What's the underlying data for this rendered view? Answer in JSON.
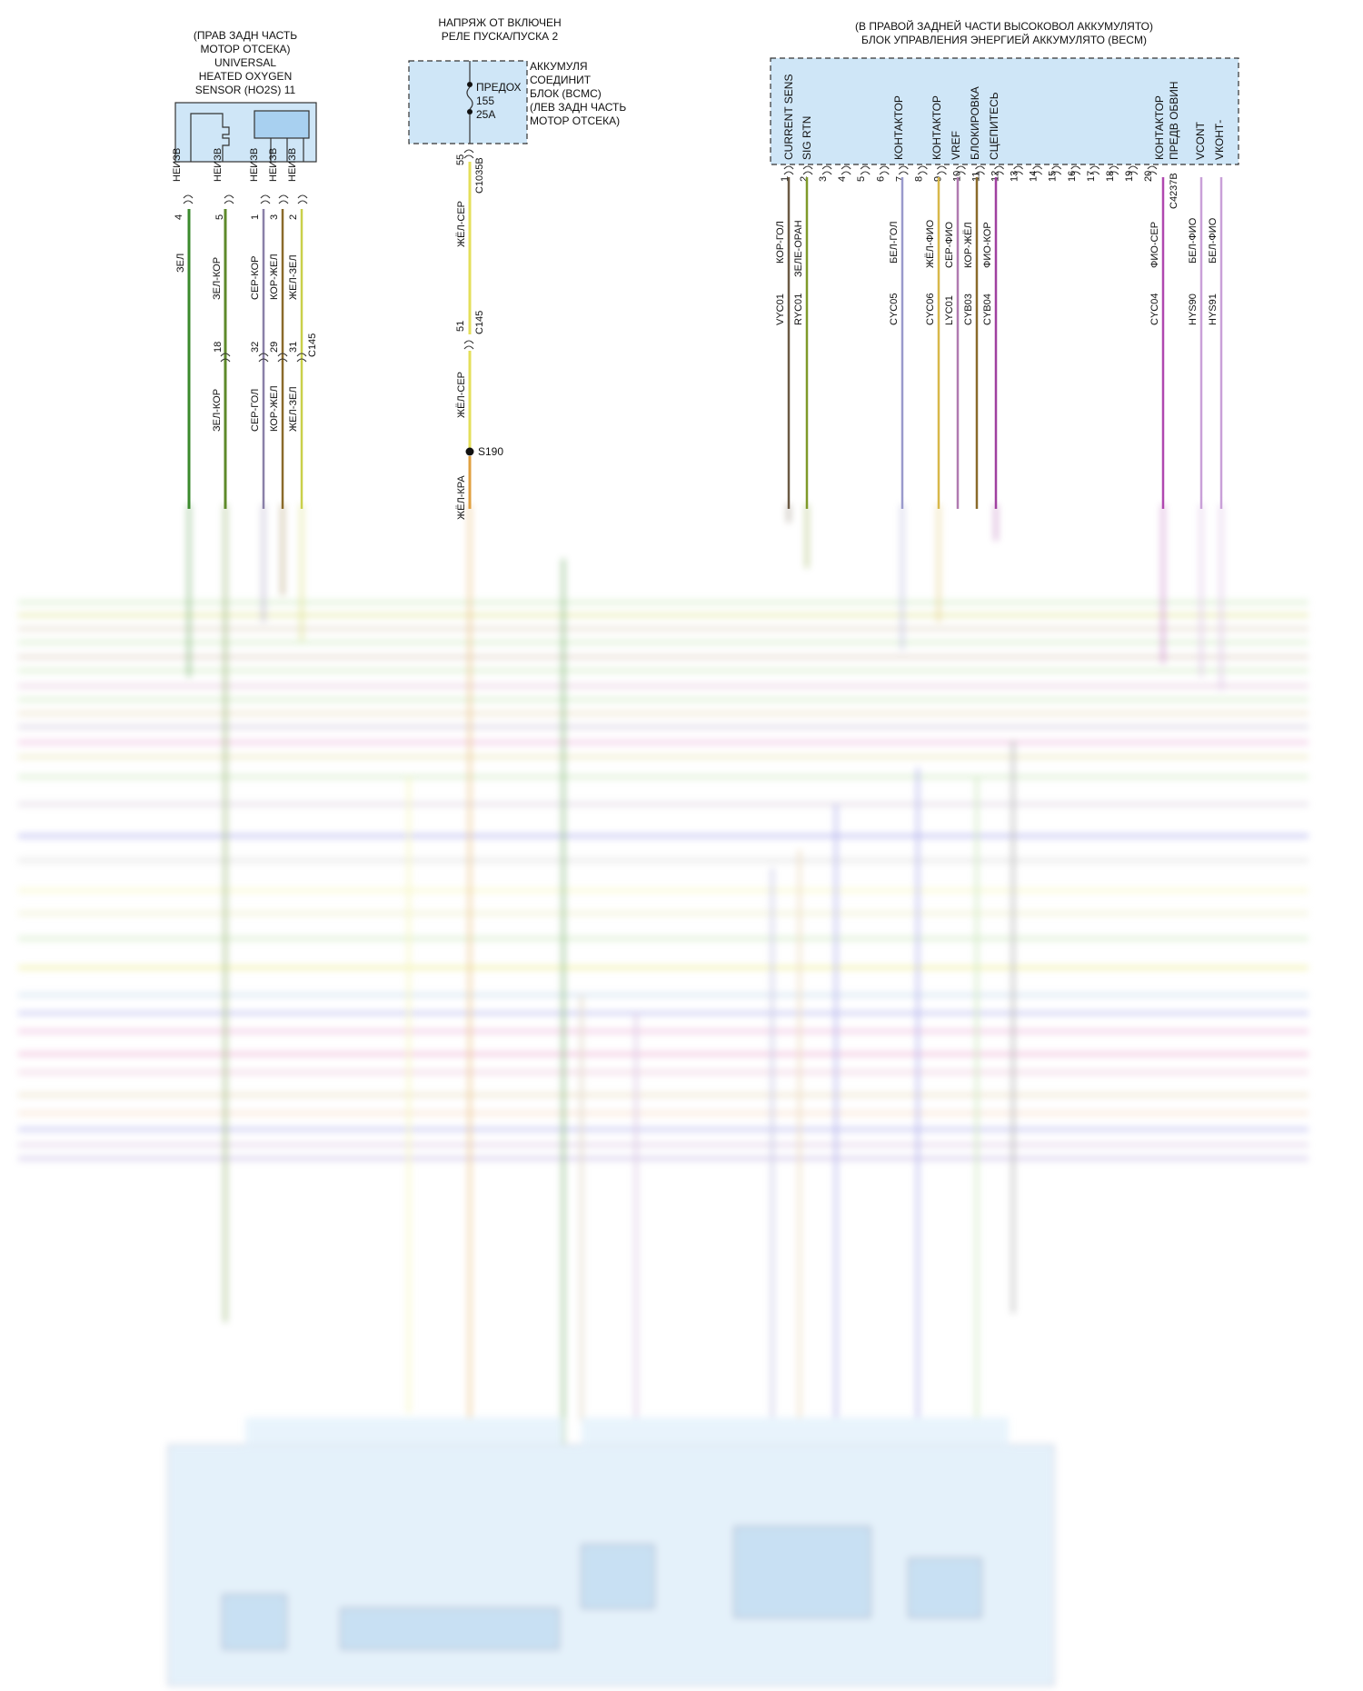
{
  "o2sensor": {
    "loc_lines": [
      "(ПРАВ ЗАДН ЧАСТЬ",
      "МОТОР ОТСЕКА)",
      "UNIVERSAL",
      "HEATED OXYGEN",
      "SENSOR (HO2S) 11"
    ],
    "pins": [
      {
        "label": "НЕИЗВ",
        "pin": "4",
        "wire": "ЗЕЛ",
        "color": "#3a8a2c"
      },
      {
        "label": "НЕИЗВ",
        "pin": "5",
        "wire": "ЗЕЛ-КОР",
        "color": "#5e8a2a"
      },
      {
        "label": "НЕИЗВ",
        "pin": "1",
        "wire": "СЕР-КОР",
        "color": "#7a6a80"
      },
      {
        "label": "НЕИЗВ",
        "pin": "3",
        "wire": "КОР-ЖЕЛ",
        "color": "#8a6a2a"
      },
      {
        "label": "НЕИЗВ",
        "pin": "2",
        "wire": "ЖЕЛ-ЗЕЛ",
        "color": "#b9c43a"
      }
    ],
    "c145_pins": [
      "18",
      "32",
      "29",
      "31"
    ],
    "c145_label": "C145",
    "lower_wires": [
      "ЗЕЛ-КОР",
      "СЕР-ГОЛ",
      "КОР-ЖЕЛ",
      "ЖЕЛ-ЗЕЛ"
    ]
  },
  "bcmc": {
    "title_lines": [
      "НАПРЯЖ ОТ ВКЛЮЧЕН",
      "РЕЛЕ ПУСКА/ПУСКА 2"
    ],
    "fuse_lines": [
      "ПРЕДОХ",
      "155",
      "25A"
    ],
    "side_lines": [
      "АККУМУЛЯ",
      "СОЕДИНИТ",
      "БЛОК (BCMC)",
      "(ЛЕВ ЗАДН ЧАСТЬ",
      "МОТОР ОТСЕКА)"
    ],
    "pin_top": "55",
    "conn_top": "C1035B",
    "wire_upper": "ЖЁЛ-СЕР",
    "pin_mid": "51",
    "conn_mid": "C145",
    "wire_mid": "ЖЁЛ-СЕР",
    "splice": "S190",
    "wire_lower": "ЖЁЛ-КРА"
  },
  "becm": {
    "title_lines": [
      "(В ПРАВОЙ ЗАДНЕЙ ЧАСТИ ВЫСОКОВОЛ АККУМУЛЯТО)",
      "БЛОК УПРАВЛЕНИЯ ЭНЕРГИЕЙ АККУМУЛЯТО (BECM)"
    ],
    "signals": [
      "CURRENT SENS",
      "SIG RTN",
      "КОНТАКТОР",
      "КОНТАКТОР",
      "VREF",
      "БЛОКИРОВКА",
      "СЦЕПИТЕСЬ",
      "КОНТАКТОР ПРЕДВ ОБВИН",
      "VCONT",
      "VКОНТ-"
    ],
    "pins": [
      "1",
      "2",
      "3",
      "4",
      "5",
      "6",
      "7",
      "8",
      "9",
      "10",
      "11",
      "12",
      "13",
      "14",
      "15",
      "16",
      "17",
      "18",
      "19",
      "20"
    ],
    "connector": "C4237B",
    "wires": [
      {
        "pin": "1",
        "color_name": "КОР-ГОЛ",
        "circuit": "VYC01",
        "color": "#6b5a44"
      },
      {
        "pin": "2",
        "color_name": "ЗЕЛЕ-ОРАН",
        "circuit": "RYC01",
        "color": "#7f9a2a"
      },
      {
        "pin": "6",
        "color_name": "БЕЛ-ГОЛ",
        "circuit": "CYC05",
        "color": "#9a9acc"
      },
      {
        "pin": "8",
        "color_name": "ЖЁЛ-ФИО",
        "circuit": "CYC06",
        "color": "#d8b84a"
      },
      {
        "pin": "9",
        "color_name": "СЕР-ФИО",
        "circuit": "LYC01",
        "color": "#b07ab0"
      },
      {
        "pin": "10",
        "color_name": "КОР-ЖЁЛ",
        "circuit": "CYB03",
        "color": "#8a6a2a"
      },
      {
        "pin": "11",
        "color_name": "ФИО-КОР",
        "circuit": "CYB04",
        "color": "#a040a0"
      },
      {
        "pin": "20",
        "color_name": "ФИО-СЕР",
        "circuit": "CYC04",
        "color": "#b048b0"
      },
      {
        "pin": "VCONT",
        "color_name": "БЕЛ-ФИО",
        "circuit": "HYS90",
        "color": "#c9a0d8"
      },
      {
        "pin": "VКОНТ-",
        "color_name": "БЕЛ-ФИО",
        "circuit": "HYS91",
        "color": "#c9a0d8"
      }
    ]
  },
  "colors": {
    "connector_fill": "#cfe6f7",
    "border": "#333333"
  }
}
